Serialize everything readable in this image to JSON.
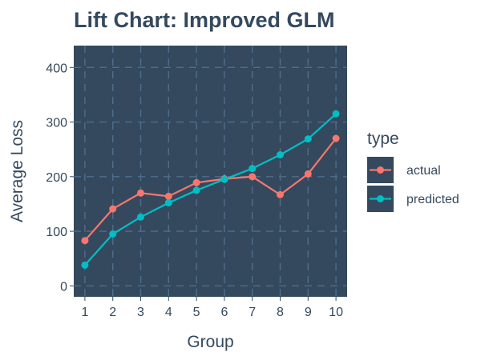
{
  "chart_data": {
    "type": "line",
    "title": "Lift Chart: Improved GLM",
    "xlabel": "Group",
    "ylabel": "Average Loss",
    "x": [
      1,
      2,
      3,
      4,
      5,
      6,
      7,
      8,
      9,
      10
    ],
    "xticks": [
      "1",
      "2",
      "3",
      "4",
      "5",
      "6",
      "7",
      "8",
      "9",
      "10"
    ],
    "yticks": [
      "0",
      "100",
      "200",
      "300",
      "400"
    ],
    "xlim": [
      0.6,
      10.4
    ],
    "ylim": [
      -20,
      440
    ],
    "grid": true,
    "legend": {
      "title": "type",
      "placement": "right"
    },
    "series": [
      {
        "name": "actual",
        "color": "#f8766d",
        "values": [
          83,
          141,
          170,
          164,
          189,
          196,
          200,
          167,
          205,
          270
        ]
      },
      {
        "name": "predicted",
        "color": "#00bfc4",
        "values": [
          38,
          95,
          126,
          152,
          175,
          195,
          215,
          240,
          269,
          315
        ]
      }
    ],
    "panel_color": "#34495e",
    "grid_color": "#4f6d8a",
    "text_color": "#34495e"
  }
}
